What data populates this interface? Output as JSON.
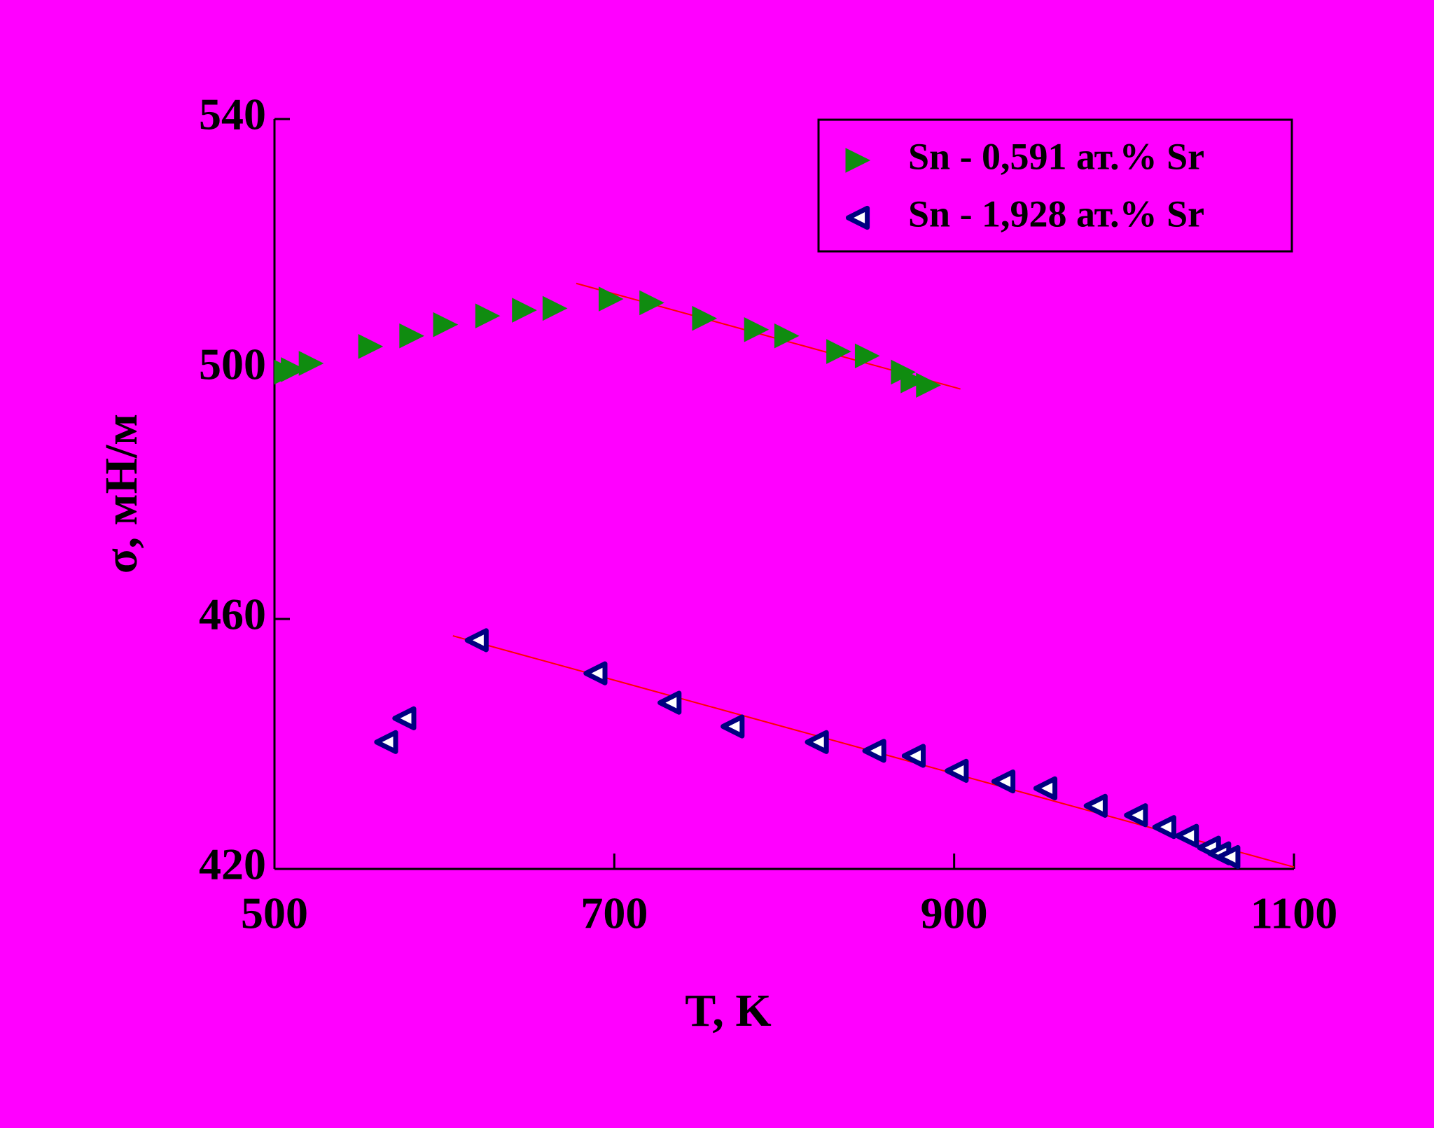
{
  "chart_data": {
    "type": "scatter",
    "xlabel": "T, K",
    "ylabel": "σ, мН/м",
    "xlim": [
      500,
      1100
    ],
    "xticks": [
      500,
      700,
      900,
      1100
    ],
    "ylim": [
      420,
      540
    ],
    "yticks": [
      420,
      460,
      500,
      540
    ],
    "legend": "upper right",
    "series": [
      {
        "name": "Sn - 0,591 ат.% Sr",
        "color": "#108c10",
        "marker": "triangle-right",
        "x": [
          507,
          511,
          521.5,
          556.5,
          580.7,
          600.6,
          625.4,
          647,
          665,
          698,
          722,
          753,
          783.6,
          801.4,
          832,
          848.8,
          870,
          875.7,
          884.8
        ],
        "values": [
          499.5,
          499.9,
          500.9,
          503.6,
          505.3,
          507.1,
          508.5,
          509.4,
          509.7,
          511.2,
          510.6,
          508.1,
          506.3,
          505.3,
          502.8,
          502.1,
          499.5,
          498.1,
          497.4
        ]
      },
      {
        "name": "Sn - 1,928 ат.% Sr",
        "color": "#000080",
        "marker": "triangle-left-open",
        "x": [
          565.7,
          576.4,
          619,
          688.9,
          732.5,
          769.6,
          819.2,
          853,
          876.2,
          901.5,
          929,
          953.7,
          983.3,
          1007,
          1023.7,
          1037,
          1050,
          1056,
          1061.4
        ],
        "values": [
          440.3,
          444.1,
          456.6,
          451.3,
          446.6,
          442.8,
          440.3,
          438.9,
          438.1,
          435.7,
          434.0,
          432.9,
          430.1,
          428.6,
          426.7,
          425.3,
          423.4,
          422.5,
          421.9
        ]
      }
    ],
    "fit_lines": [
      {
        "color": "#ff0000",
        "x": [
          677.6,
          903.7
        ],
        "values": [
          513.7,
          496.8
        ]
      },
      {
        "color": "#ff0000",
        "x": [
          605,
          1100
        ],
        "values": [
          457.3,
          420.3
        ]
      }
    ]
  }
}
